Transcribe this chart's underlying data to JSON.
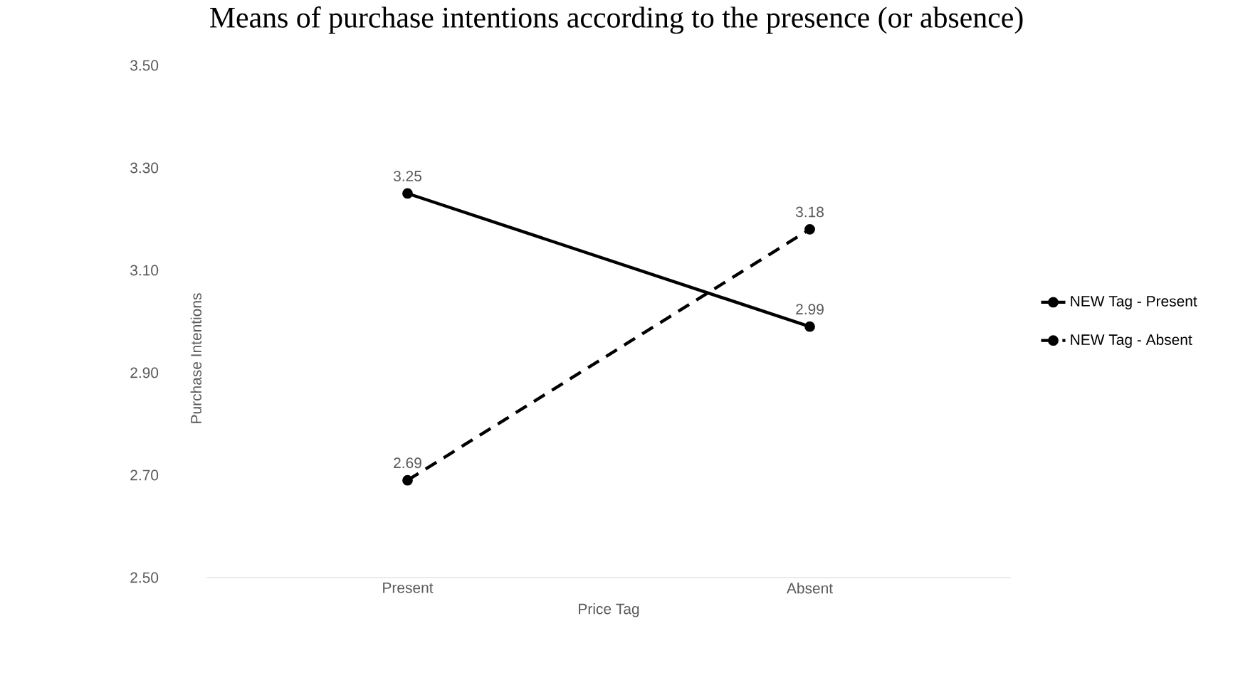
{
  "chart_data": {
    "type": "line",
    "title": "Means of purchase intentions according to the presence (or absence)",
    "xlabel": "Price Tag",
    "ylabel": "Purchase Intentions",
    "categories": [
      "Present",
      "Absent"
    ],
    "series": [
      {
        "name": "NEW Tag - Present",
        "color": "#000000",
        "line_style": "solid",
        "values": [
          3.25,
          2.99
        ],
        "value_labels": [
          "3.25",
          "2.99"
        ]
      },
      {
        "name": "NEW Tag - Absent",
        "color": "#000000",
        "line_style": "dashed",
        "values": [
          2.69,
          3.18
        ],
        "value_labels": [
          "2.69",
          "3.18"
        ]
      }
    ],
    "ylim": [
      2.5,
      3.5
    ],
    "yticks": [
      {
        "value": 2.5,
        "label": "2.50"
      },
      {
        "value": 2.7,
        "label": "2.70"
      },
      {
        "value": 2.9,
        "label": "2.90"
      },
      {
        "value": 3.1,
        "label": "3.10"
      },
      {
        "value": 3.3,
        "label": "3.30"
      },
      {
        "value": 3.5,
        "label": "3.50"
      }
    ],
    "marker": "circle",
    "legend": "right"
  }
}
